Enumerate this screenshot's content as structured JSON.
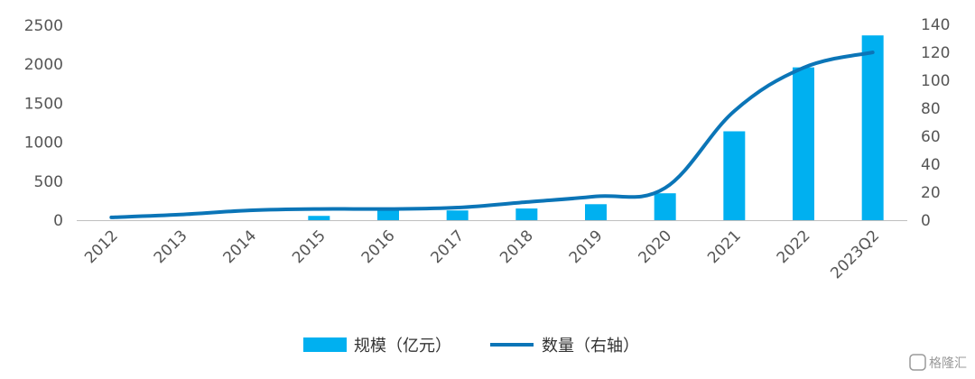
{
  "chart_data": {
    "type": "bar",
    "categories": [
      "2012",
      "2013",
      "2014",
      "2015",
      "2016",
      "2017",
      "2018",
      "2019",
      "2020",
      "2021",
      "2022",
      "2023Q2"
    ],
    "series": [
      {
        "name": "规模（亿元）",
        "type": "bar",
        "axis": "left",
        "color": "#00B0F0",
        "values": [
          0,
          0,
          0,
          55,
          130,
          125,
          150,
          205,
          345,
          1140,
          1960,
          2370
        ]
      },
      {
        "name": "数量（右轴）",
        "type": "line",
        "axis": "right",
        "color": "#0B75B7",
        "values": [
          2,
          4,
          7,
          8,
          8,
          9,
          13,
          17,
          23,
          78,
          109,
          120
        ]
      }
    ],
    "y_left": {
      "ticks": [
        "0",
        "500",
        "1000",
        "1500",
        "2000",
        "2500"
      ],
      "range": [
        0,
        2500
      ]
    },
    "y_right": {
      "ticks": [
        "0",
        "20",
        "40",
        "60",
        "80",
        "100",
        "120",
        "140"
      ],
      "range": [
        0,
        140
      ]
    },
    "legend_position": "bottom",
    "grid": false
  },
  "watermark": "格隆汇"
}
